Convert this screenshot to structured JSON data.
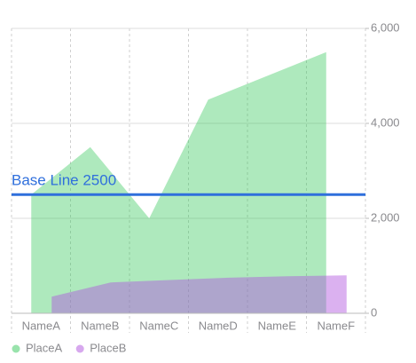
{
  "chart_data": {
    "type": "area",
    "categories": [
      "NameA",
      "NameB",
      "NameC",
      "NameD",
      "NameE",
      "NameF"
    ],
    "series": [
      {
        "name": "PlaceA",
        "color": "#34c759",
        "values": [
          2500,
          3500,
          2000,
          4500,
          5000,
          5500
        ]
      },
      {
        "name": "PlaceB",
        "color": "#af52de",
        "values": [
          350,
          650,
          700,
          750,
          780,
          800
        ]
      }
    ],
    "ylim": [
      0,
      6000
    ],
    "yticks": [
      0,
      {
        "value": 2000,
        "label": "2,000"
      },
      {
        "value": 4000,
        "label": "4,000"
      },
      {
        "value": 6000,
        "label": "6,000"
      }
    ],
    "grid": true,
    "rule": {
      "value": 2500,
      "label": "Base Line 2500",
      "color": "#2f6fdc"
    },
    "legend": "bottom-left"
  }
}
